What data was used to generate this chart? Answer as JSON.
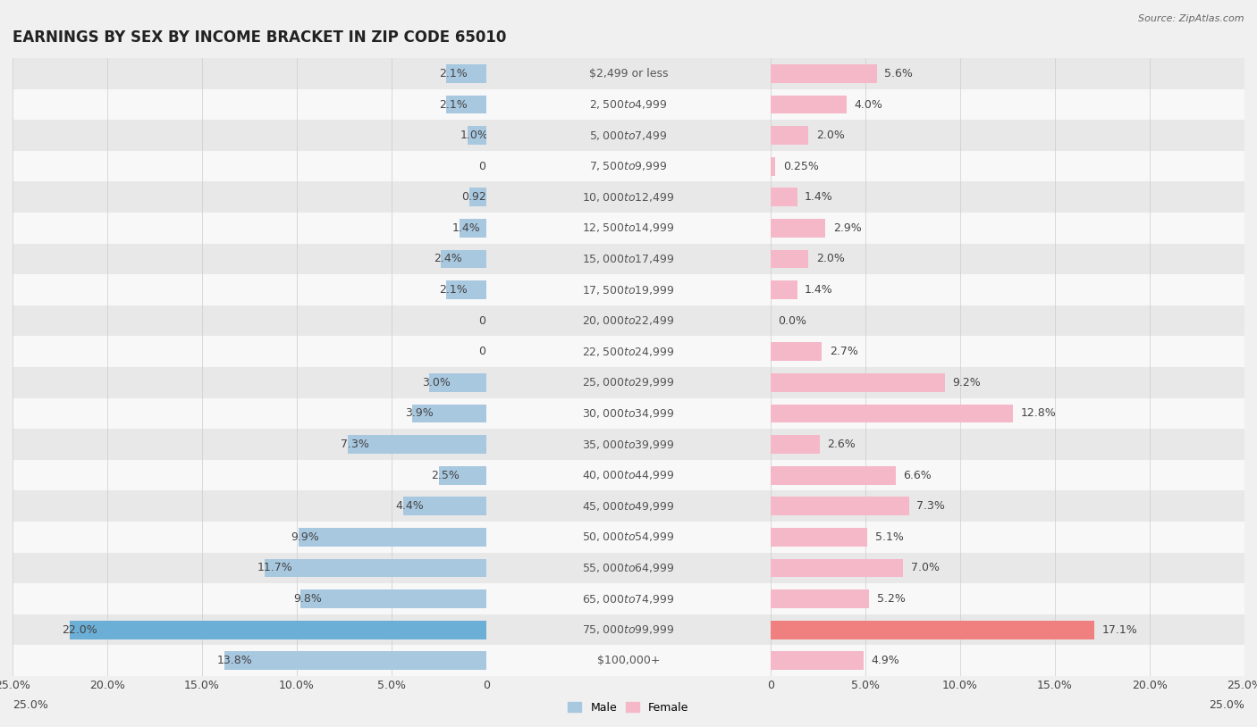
{
  "title": "EARNINGS BY SEX BY INCOME BRACKET IN ZIP CODE 65010",
  "source": "Source: ZipAtlas.com",
  "categories": [
    "$2,499 or less",
    "$2,500 to $4,999",
    "$5,000 to $7,499",
    "$7,500 to $9,999",
    "$10,000 to $12,499",
    "$12,500 to $14,999",
    "$15,000 to $17,499",
    "$17,500 to $19,999",
    "$20,000 to $22,499",
    "$22,500 to $24,999",
    "$25,000 to $29,999",
    "$30,000 to $34,999",
    "$35,000 to $39,999",
    "$40,000 to $44,999",
    "$45,000 to $49,999",
    "$50,000 to $54,999",
    "$55,000 to $64,999",
    "$65,000 to $74,999",
    "$75,000 to $99,999",
    "$100,000+"
  ],
  "male_values": [
    2.1,
    2.1,
    1.0,
    0.0,
    0.92,
    1.4,
    2.4,
    2.1,
    0.0,
    0.0,
    3.0,
    3.9,
    7.3,
    2.5,
    4.4,
    9.9,
    11.7,
    9.8,
    22.0,
    13.8
  ],
  "female_values": [
    5.6,
    4.0,
    2.0,
    0.25,
    1.4,
    2.9,
    2.0,
    1.4,
    0.0,
    2.7,
    9.2,
    12.8,
    2.6,
    6.6,
    7.3,
    5.1,
    7.0,
    5.2,
    17.1,
    4.9
  ],
  "male_label_values": [
    "2.1%",
    "2.1%",
    "1.0%",
    "0.0%",
    "0.92%",
    "1.4%",
    "2.4%",
    "2.1%",
    "0.0%",
    "0.0%",
    "3.0%",
    "3.9%",
    "7.3%",
    "2.5%",
    "4.4%",
    "9.9%",
    "11.7%",
    "9.8%",
    "22.0%",
    "13.8%"
  ],
  "female_label_values": [
    "5.6%",
    "4.0%",
    "2.0%",
    "0.25%",
    "1.4%",
    "2.9%",
    "2.0%",
    "1.4%",
    "0.0%",
    "2.7%",
    "9.2%",
    "12.8%",
    "2.6%",
    "6.6%",
    "7.3%",
    "5.1%",
    "7.0%",
    "5.2%",
    "17.1%",
    "4.9%"
  ],
  "male_color": "#a8c8e0",
  "female_color": "#f5b8c8",
  "highlight_male_color": "#6baed6",
  "highlight_female_color": "#f08080",
  "highlight_rows": [
    18
  ],
  "xlim": 25.0,
  "bg_color": "#f0f0f0",
  "row_even_color": "#e8e8e8",
  "row_odd_color": "#f8f8f8",
  "bar_height": 0.6,
  "title_fontsize": 12,
  "label_fontsize": 9,
  "category_fontsize": 9,
  "axis_tick_fontsize": 9,
  "tick_values": [
    0,
    5,
    10,
    15,
    20,
    25
  ],
  "tick_labels": [
    "0",
    "5.0%",
    "10.0%",
    "15.0%",
    "20.0%",
    "25.0%"
  ]
}
